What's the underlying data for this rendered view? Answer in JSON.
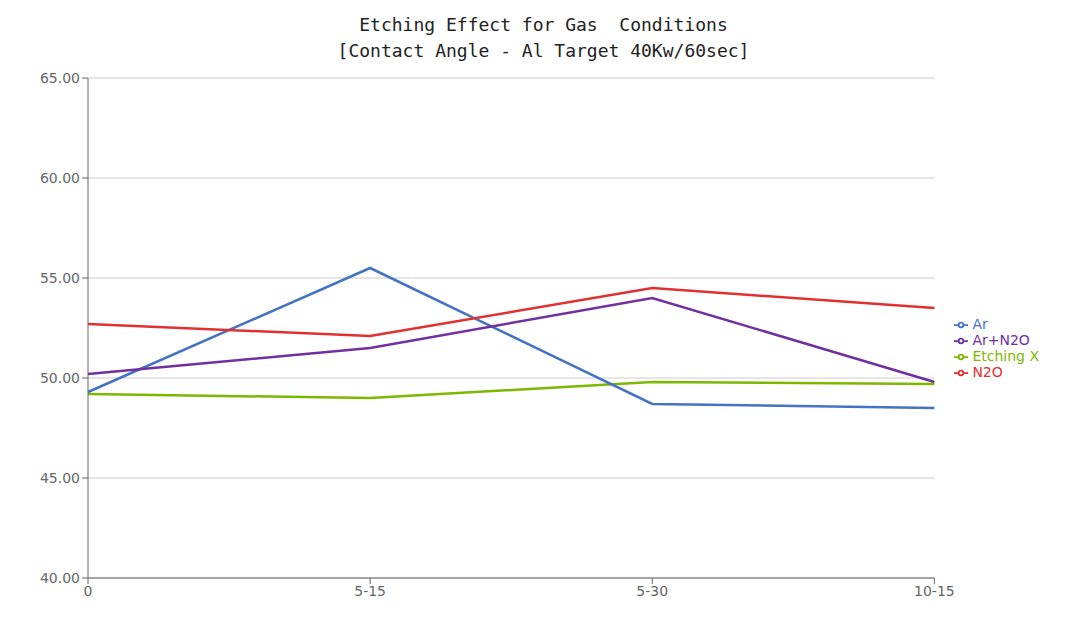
{
  "chart_data": {
    "type": "line",
    "title": "Etching Effect for Gas  Conditions",
    "subtitle": "[Contact Angle - Al Target 40Kw/60sec]",
    "categories": [
      "0",
      "5-15",
      "5-30",
      "10-15"
    ],
    "series": [
      {
        "name": "Etching X",
        "color": "#7db700",
        "values": [
          49.2,
          49.0,
          49.8,
          49.7
        ]
      },
      {
        "name": "Ar",
        "color": "#4472c4",
        "values": [
          49.3,
          55.5,
          48.7,
          48.5
        ]
      },
      {
        "name": "N2O",
        "color": "#e03030",
        "values": [
          52.7,
          52.1,
          54.5,
          53.5
        ]
      },
      {
        "name": "Ar+N2O",
        "color": "#7030a0",
        "values": [
          50.2,
          51.5,
          54.0,
          49.8
        ]
      }
    ],
    "ylim": [
      40.0,
      65.0
    ],
    "yticks": [
      {
        "value": 40.0,
        "label": "40.00"
      },
      {
        "value": 45.0,
        "label": "45.00"
      },
      {
        "value": 50.0,
        "label": "50.00"
      },
      {
        "value": 55.0,
        "label": "55.00"
      },
      {
        "value": 60.0,
        "label": "60.00"
      },
      {
        "value": 65.0,
        "label": "65.00"
      }
    ],
    "grid": true,
    "legend": "right"
  }
}
